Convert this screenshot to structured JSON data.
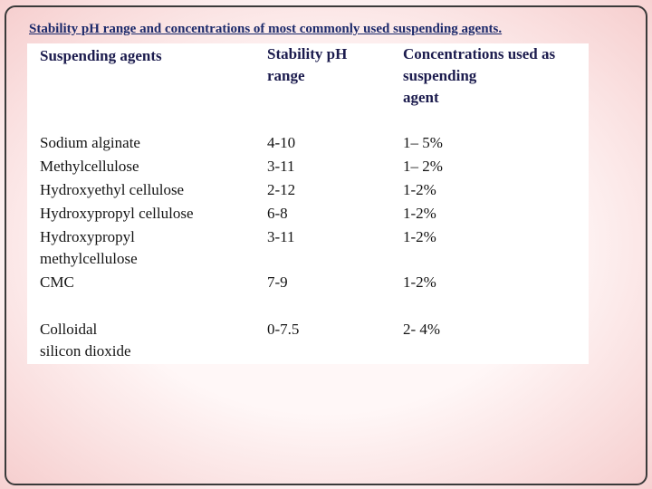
{
  "title": "Stability pH range and concentrations of most commonly used suspending agents.",
  "table": {
    "header": [
      [
        "Suspending agents"
      ],
      [
        "Stability pH",
        "range"
      ],
      [
        "Concentrations used as",
        "suspending",
        "agent"
      ]
    ],
    "rows": [
      [
        [
          "Sodium alginate"
        ],
        [
          "4-10"
        ],
        [
          "1– 5%"
        ]
      ],
      [
        [
          "Methylcellulose"
        ],
        [
          "3-11"
        ],
        [
          "1– 2%"
        ]
      ],
      [
        [
          "Hydroxyethyl cellulose"
        ],
        [
          "2-12"
        ],
        [
          "1-2%"
        ]
      ],
      [
        [
          "Hydroxypropyl cellulose"
        ],
        [
          "6-8"
        ],
        [
          "1-2%"
        ]
      ],
      [
        [
          "Hydroxypropyl",
          "methylcellulose"
        ],
        [
          "3-11"
        ],
        [
          "1-2%"
        ]
      ],
      [
        [
          "CMC"
        ],
        [
          "7-9"
        ],
        [
          "1-2%"
        ]
      ],
      [
        [
          "Colloidal",
          "silicon dioxide"
        ],
        [
          "0-7.5"
        ],
        [
          "2- 4%"
        ]
      ]
    ]
  }
}
